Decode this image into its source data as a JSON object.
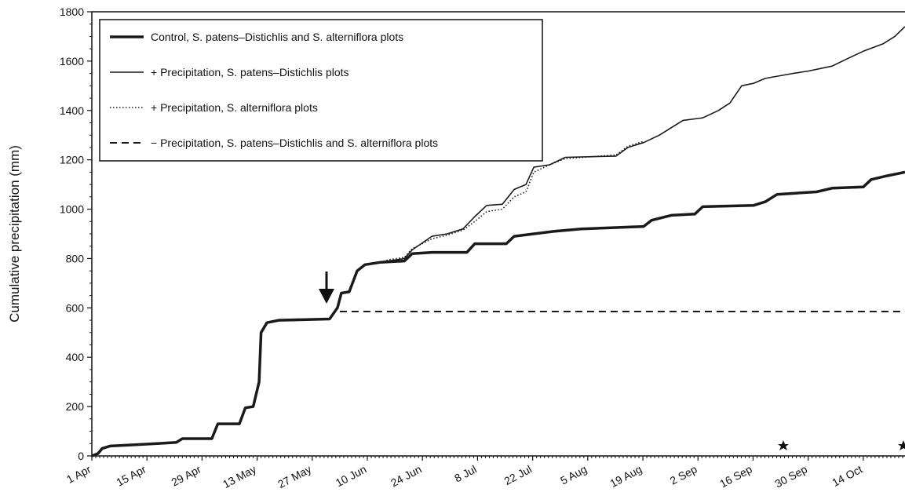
{
  "chart_data": {
    "type": "line",
    "y_label": "Cumulative precipitation (mm)",
    "xlim": [
      0,
      206.6
    ],
    "ylim": [
      0,
      1800
    ],
    "yticks": [
      0,
      200,
      400,
      600,
      800,
      1000,
      1200,
      1400,
      1600,
      1800
    ],
    "xticks": [
      {
        "value": 0,
        "label": "1 Apr"
      },
      {
        "value": 14,
        "label": "15 Apr"
      },
      {
        "value": 28,
        "label": "29 Apr"
      },
      {
        "value": 42,
        "label": "13 May"
      },
      {
        "value": 56,
        "label": "27 May"
      },
      {
        "value": 70,
        "label": "10 Jun"
      },
      {
        "value": 84,
        "label": "24 Jun"
      },
      {
        "value": 98,
        "label": "8 Jul"
      },
      {
        "value": 112,
        "label": "22 Jul"
      },
      {
        "value": 126,
        "label": "5 Aug"
      },
      {
        "value": 140,
        "label": "19 Aug"
      },
      {
        "value": 154,
        "label": "2 Sep"
      },
      {
        "value": 168,
        "label": "16 Sep"
      },
      {
        "value": 182,
        "label": "30 Sep"
      },
      {
        "value": 196,
        "label": "14 Oct"
      }
    ],
    "series": [
      {
        "name": "Control, S. patens–Distichlis and S. alterniflora plots",
        "color": "#1a1a1a",
        "style": "thick",
        "x": [
          0,
          1.6,
          2.6,
          4.6,
          10.6,
          16.6,
          21.5,
          23,
          30.5,
          32,
          37.5,
          39,
          41,
          42.5,
          43,
          44.5,
          47.5,
          60.4,
          62.4,
          63.4,
          65.4,
          67.4,
          69.4,
          73.4,
          79.4,
          81.4,
          86.4,
          95.3,
          97.3,
          105.3,
          107.3,
          112.3,
          117.3,
          124.3,
          140.2,
          142.2,
          147.2,
          153.2,
          155.2,
          168.1,
          171.1,
          174.1,
          184.1,
          188.1,
          196,
          198,
          202,
          206.6
        ],
        "values": [
          0,
          10,
          30,
          40,
          45,
          50,
          55,
          70,
          70,
          130,
          130,
          195,
          200,
          300,
          500,
          540,
          550,
          555,
          600,
          660,
          665,
          750,
          775,
          785,
          790,
          820,
          825,
          825,
          860,
          860,
          890,
          900,
          910,
          920,
          930,
          955,
          975,
          980,
          1010,
          1015,
          1030,
          1060,
          1070,
          1085,
          1090,
          1120,
          1135,
          1150
        ]
      },
      {
        "name": "+ Precipitation, S. patens–Distichlis plots",
        "color": "#1a1a1a",
        "style": "thin",
        "x": [
          69.4,
          73.4,
          75.4,
          79.4,
          81.4,
          86.4,
          90.3,
          94.3,
          97.3,
          100.3,
          104.3,
          107.3,
          110.3,
          112.3,
          116.3,
          120.3,
          133.2,
          136.2,
          140.2,
          144.2,
          147.2,
          150.2,
          155.2,
          159.2,
          162.1,
          165.1,
          168.1,
          171.1,
          178.1,
          182.1,
          188.1,
          192,
          196,
          201,
          204,
          206.6
        ],
        "values": [
          775,
          785,
          790,
          800,
          835,
          890,
          900,
          920,
          970,
          1015,
          1020,
          1080,
          1100,
          1170,
          1180,
          1210,
          1215,
          1250,
          1270,
          1300,
          1330,
          1360,
          1370,
          1400,
          1430,
          1500,
          1510,
          1530,
          1550,
          1560,
          1580,
          1610,
          1640,
          1670,
          1700,
          1740
        ]
      },
      {
        "name": "+ Precipitation, S. alterniflora plots",
        "color": "#1a1a1a",
        "style": "dotted",
        "x": [
          69.4,
          73.4,
          75.4,
          79.4,
          81.4,
          86.4,
          90.3,
          94.3,
          97.3,
          100.3,
          104.3,
          107.3,
          110.3,
          112.3,
          116.3,
          120.3,
          133.2,
          136.2,
          140.2
        ],
        "values": [
          775,
          785,
          795,
          805,
          840,
          880,
          895,
          915,
          950,
          990,
          1000,
          1050,
          1070,
          1150,
          1180,
          1205,
          1220,
          1255,
          1275
        ]
      },
      {
        "name": "− Precipitation, S. patens–Distichlis and S. alterniflora plots",
        "color": "#1a1a1a",
        "style": "dashed",
        "x": [
          63,
          206.6
        ],
        "values": [
          585,
          585
        ]
      }
    ]
  }
}
